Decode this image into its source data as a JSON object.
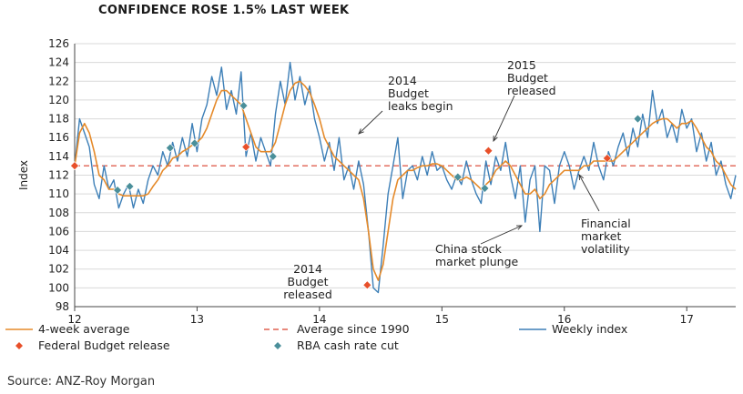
{
  "chart_data": {
    "type": "line",
    "title": "CONFIDENCE ROSE 1.5% LAST WEEK",
    "xlabel": "",
    "ylabel": "Index",
    "xlim": [
      12,
      17.4
    ],
    "ylim": [
      98,
      126
    ],
    "x_ticks": [
      "12",
      "13",
      "14",
      "15",
      "16",
      "17"
    ],
    "y_ticks": [
      98,
      100,
      102,
      104,
      106,
      108,
      110,
      112,
      114,
      116,
      118,
      120,
      122,
      124,
      126
    ],
    "grid": "horizontal",
    "legend_position": "bottom",
    "average_since_1990": 113,
    "series": [
      {
        "name": "Weekly index",
        "color": "#3d7fb7",
        "x": [
          12.0,
          12.04,
          12.08,
          12.12,
          12.16,
          12.2,
          12.24,
          12.28,
          12.32,
          12.36,
          12.4,
          12.44,
          12.48,
          12.52,
          12.56,
          12.6,
          12.64,
          12.68,
          12.72,
          12.76,
          12.8,
          12.84,
          12.88,
          12.92,
          12.96,
          13.0,
          13.04,
          13.08,
          13.12,
          13.16,
          13.2,
          13.24,
          13.28,
          13.32,
          13.36,
          13.4,
          13.44,
          13.48,
          13.52,
          13.56,
          13.6,
          13.64,
          13.68,
          13.72,
          13.76,
          13.8,
          13.84,
          13.88,
          13.92,
          13.96,
          14.0,
          14.04,
          14.08,
          14.12,
          14.16,
          14.2,
          14.24,
          14.28,
          14.32,
          14.36,
          14.4,
          14.44,
          14.48,
          14.52,
          14.56,
          14.6,
          14.64,
          14.68,
          14.72,
          14.76,
          14.8,
          14.84,
          14.88,
          14.92,
          14.96,
          15.0,
          15.04,
          15.08,
          15.12,
          15.16,
          15.2,
          15.24,
          15.28,
          15.32,
          15.36,
          15.4,
          15.44,
          15.48,
          15.52,
          15.56,
          15.6,
          15.64,
          15.68,
          15.72,
          15.76,
          15.8,
          15.84,
          15.88,
          15.92,
          15.96,
          16.0,
          16.04,
          16.08,
          16.12,
          16.16,
          16.2,
          16.24,
          16.28,
          16.32,
          16.36,
          16.4,
          16.44,
          16.48,
          16.52,
          16.56,
          16.6,
          16.64,
          16.68,
          16.72,
          16.76,
          16.8,
          16.84,
          16.88,
          16.92,
          16.96,
          17.0,
          17.04,
          17.08,
          17.12,
          17.16,
          17.2,
          17.24,
          17.28,
          17.32,
          17.36,
          17.4
        ],
        "values": [
          113.0,
          118.0,
          116.5,
          115.0,
          111.0,
          109.5,
          113.0,
          110.5,
          111.5,
          108.5,
          110.0,
          111.0,
          108.5,
          110.5,
          109.0,
          111.5,
          113.0,
          112.0,
          114.5,
          113.0,
          115.5,
          113.5,
          116.0,
          114.0,
          117.5,
          114.5,
          118.0,
          119.5,
          122.5,
          120.5,
          123.5,
          119.0,
          121.0,
          118.5,
          123.0,
          114.0,
          116.5,
          113.5,
          116.0,
          114.5,
          113.0,
          118.5,
          122.0,
          119.5,
          124.0,
          120.0,
          122.5,
          119.5,
          121.5,
          118.0,
          116.0,
          113.5,
          115.5,
          112.5,
          116.0,
          111.5,
          113.0,
          110.5,
          113.5,
          111.0,
          106.0,
          100.0,
          99.5,
          104.5,
          110.0,
          113.0,
          116.0,
          109.5,
          112.5,
          113.0,
          111.5,
          114.0,
          112.0,
          114.5,
          112.5,
          113.0,
          111.5,
          110.5,
          112.0,
          111.0,
          113.5,
          111.5,
          110.0,
          109.0,
          113.5,
          111.0,
          114.0,
          112.5,
          115.5,
          112.0,
          109.5,
          113.0,
          107.0,
          111.5,
          113.0,
          106.0,
          113.0,
          112.5,
          109.0,
          113.0,
          114.5,
          113.0,
          110.5,
          112.5,
          114.0,
          112.5,
          115.5,
          113.0,
          111.5,
          114.5,
          113.0,
          115.0,
          116.5,
          114.0,
          117.0,
          115.0,
          118.5,
          116.0,
          121.0,
          117.5,
          119.0,
          116.0,
          117.5,
          115.5,
          119.0,
          117.0,
          118.0,
          114.5,
          116.5,
          113.5,
          115.5,
          112.0,
          113.5,
          111.0,
          109.5,
          112.0
        ]
      },
      {
        "name": "4-week average",
        "color": "#e58a2a",
        "x": [
          12.0,
          12.04,
          12.08,
          12.12,
          12.16,
          12.2,
          12.24,
          12.28,
          12.32,
          12.36,
          12.4,
          12.44,
          12.48,
          12.52,
          12.56,
          12.6,
          12.64,
          12.68,
          12.72,
          12.76,
          12.8,
          12.84,
          12.88,
          12.92,
          12.96,
          13.0,
          13.04,
          13.08,
          13.12,
          13.16,
          13.2,
          13.24,
          13.28,
          13.32,
          13.36,
          13.4,
          13.44,
          13.48,
          13.52,
          13.56,
          13.6,
          13.64,
          13.68,
          13.72,
          13.76,
          13.8,
          13.84,
          13.88,
          13.92,
          13.96,
          14.0,
          14.04,
          14.08,
          14.12,
          14.16,
          14.2,
          14.24,
          14.28,
          14.32,
          14.36,
          14.4,
          14.44,
          14.48,
          14.52,
          14.56,
          14.6,
          14.64,
          14.68,
          14.72,
          14.76,
          14.8,
          14.84,
          14.88,
          14.92,
          14.96,
          15.0,
          15.04,
          15.08,
          15.12,
          15.16,
          15.2,
          15.24,
          15.28,
          15.32,
          15.36,
          15.4,
          15.44,
          15.48,
          15.52,
          15.56,
          15.6,
          15.64,
          15.68,
          15.72,
          15.76,
          15.8,
          15.84,
          15.88,
          15.92,
          15.96,
          16.0,
          16.04,
          16.08,
          16.12,
          16.16,
          16.2,
          16.24,
          16.28,
          16.32,
          16.36,
          16.4,
          16.44,
          16.48,
          16.52,
          16.56,
          16.6,
          16.64,
          16.68,
          16.72,
          16.76,
          16.8,
          16.84,
          16.88,
          16.92,
          16.96,
          17.0,
          17.04,
          17.08,
          17.12,
          17.16,
          17.2,
          17.24,
          17.28,
          17.32,
          17.36,
          17.4
        ],
        "values": [
          113.0,
          116.5,
          117.5,
          116.5,
          114.5,
          112.0,
          111.5,
          110.5,
          110.5,
          110.0,
          109.8,
          109.8,
          109.8,
          109.8,
          109.8,
          110.0,
          110.8,
          111.5,
          112.5,
          113.0,
          113.8,
          114.0,
          114.5,
          114.8,
          115.2,
          115.5,
          116.0,
          117.0,
          118.5,
          120.0,
          121.0,
          121.0,
          120.5,
          120.0,
          119.5,
          118.0,
          116.5,
          115.0,
          114.5,
          114.5,
          114.5,
          115.5,
          117.5,
          119.5,
          121.0,
          121.8,
          122.0,
          121.5,
          120.8,
          119.5,
          118.0,
          116.0,
          115.0,
          114.0,
          113.5,
          113.0,
          112.5,
          112.0,
          111.5,
          109.5,
          106.0,
          102.0,
          100.8,
          102.5,
          106.0,
          109.5,
          111.5,
          112.0,
          112.5,
          112.5,
          112.8,
          113.0,
          113.0,
          113.2,
          113.2,
          113.0,
          112.5,
          112.0,
          111.5,
          111.5,
          111.8,
          111.5,
          111.0,
          110.5,
          111.0,
          111.5,
          112.5,
          113.0,
          113.5,
          113.0,
          112.0,
          111.0,
          110.0,
          110.0,
          110.5,
          109.5,
          110.0,
          111.0,
          111.5,
          112.0,
          112.5,
          112.5,
          112.5,
          112.5,
          113.0,
          113.0,
          113.5,
          113.5,
          113.5,
          113.5,
          113.5,
          114.0,
          114.5,
          115.0,
          115.5,
          116.0,
          116.5,
          117.0,
          117.5,
          117.8,
          118.0,
          118.0,
          117.5,
          117.0,
          117.5,
          117.5,
          117.8,
          117.0,
          116.0,
          115.0,
          114.5,
          113.5,
          113.0,
          112.0,
          111.0,
          110.5
        ]
      },
      {
        "name": "Average since 1990",
        "color": "#e06050",
        "style": "dashed",
        "values": [
          113
        ]
      }
    ],
    "markers": [
      {
        "name": "Federal Budget release",
        "color": "#e8502a",
        "shape": "diamond",
        "points": [
          {
            "x": 12.0,
            "y": 113.0
          },
          {
            "x": 13.4,
            "y": 115.0
          },
          {
            "x": 14.39,
            "y": 100.3
          },
          {
            "x": 15.38,
            "y": 114.6
          },
          {
            "x": 16.35,
            "y": 113.8
          }
        ]
      },
      {
        "name": "RBA cash rate cut",
        "color": "#4a8f9a",
        "shape": "diamond",
        "points": [
          {
            "x": 12.35,
            "y": 110.4
          },
          {
            "x": 12.45,
            "y": 110.8
          },
          {
            "x": 12.78,
            "y": 114.9
          },
          {
            "x": 12.98,
            "y": 115.4
          },
          {
            "x": 13.38,
            "y": 119.4
          },
          {
            "x": 13.62,
            "y": 114.0
          },
          {
            "x": 15.13,
            "y": 111.8
          },
          {
            "x": 15.35,
            "y": 110.6
          },
          {
            "x": 16.6,
            "y": 118.0
          }
        ]
      }
    ],
    "annotations": [
      {
        "id": "budget2014leaks",
        "lines": [
          "2014",
          "Budget",
          "leaks begin"
        ]
      },
      {
        "id": "budget2015",
        "lines": [
          "2015",
          "Budget",
          "released"
        ]
      },
      {
        "id": "budget2014",
        "lines": [
          "2014",
          "Budget",
          "released"
        ]
      },
      {
        "id": "china",
        "lines": [
          "China stock",
          "market plunge"
        ]
      },
      {
        "id": "fmv",
        "lines": [
          "Financial",
          "market",
          "volatility"
        ]
      }
    ]
  },
  "source": "Source: ANZ-Roy Morgan"
}
